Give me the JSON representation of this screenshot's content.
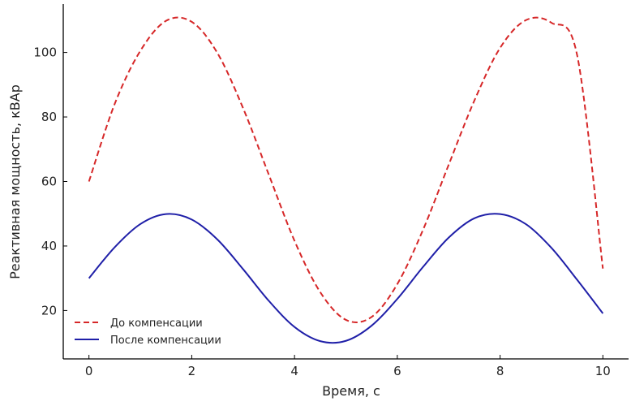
{
  "chart_data": {
    "type": "line",
    "title": "",
    "xlabel": "Время, с",
    "ylabel": "Реактивная мощность, кВАр",
    "xlim": [
      -0.5,
      10.5
    ],
    "ylim": [
      5,
      115
    ],
    "xticks": [
      "0",
      "2",
      "4",
      "6",
      "8",
      "10"
    ],
    "yticks": [
      "20",
      "40",
      "60",
      "80",
      "100"
    ],
    "grid": false,
    "legend_position": "bottom-left",
    "x": [
      0,
      0.5,
      1.0,
      1.5,
      2.0,
      2.5,
      3.0,
      3.5,
      4.0,
      4.5,
      5.0,
      5.5,
      6.0,
      6.5,
      7.0,
      7.5,
      8.0,
      8.5,
      9.0,
      9.5,
      10.0
    ],
    "series": [
      {
        "name": "До компенсации",
        "color": "#d62728",
        "style": "dashed",
        "values": [
          60.0,
          84.0,
          100.5,
          109.8,
          109.5,
          99.8,
          82.7,
          62.1,
          41.6,
          25.7,
          17.1,
          18.0,
          28.2,
          45.0,
          65.2,
          85.1,
          101.4,
          110.0,
          109.2,
          99.1,
          33.0
        ]
      },
      {
        "name": "После компенсации",
        "color": "#1f1fa8",
        "style": "solid",
        "values": [
          30.0,
          39.6,
          46.8,
          49.9,
          48.2,
          42.0,
          32.8,
          23.0,
          14.9,
          10.5,
          10.6,
          15.3,
          23.6,
          33.5,
          42.6,
          48.6,
          49.9,
          46.8,
          39.4,
          29.5,
          19.1
        ]
      }
    ]
  }
}
